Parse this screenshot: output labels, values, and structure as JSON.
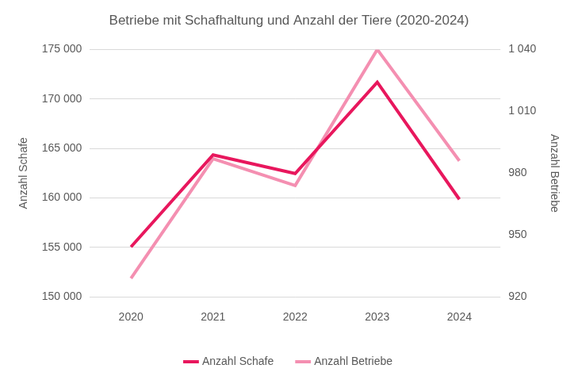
{
  "chart_data": {
    "type": "line",
    "title": "Betriebe mit Schafhaltung und Anzahl der Tiere (2020-2024)",
    "categories": [
      "2020",
      "2021",
      "2022",
      "2023",
      "2024"
    ],
    "series": [
      {
        "name": "Anzahl Schafe",
        "color": "#e8175d",
        "values": [
          155050,
          164350,
          162460,
          171690,
          159860
        ]
      },
      {
        "name": "Anzahl Betriebe",
        "color": "#f48fb1",
        "axis": "y2",
        "values": [
          929,
          987,
          974,
          1040,
          986
        ]
      }
    ],
    "y_label": "Anzahl Schafe",
    "y2_label": "Anzahl Betriebe",
    "ylim": [
      150000,
      175000
    ],
    "yticks": [
      {
        "value": 150000,
        "label": "150 000"
      },
      {
        "value": 155000,
        "label": "155 000"
      },
      {
        "value": 160000,
        "label": "160 000"
      },
      {
        "value": 165000,
        "label": "165 000"
      },
      {
        "value": 170000,
        "label": "170 000"
      },
      {
        "value": 175000,
        "label": "175 000"
      }
    ],
    "y2lim": [
      920,
      1040
    ],
    "y2ticks": [
      920,
      950,
      980,
      {
        "value": 1010,
        "label": "1 010"
      },
      {
        "value": 1040,
        "label": "1 040"
      }
    ],
    "grid": true,
    "legend": "bottom"
  }
}
